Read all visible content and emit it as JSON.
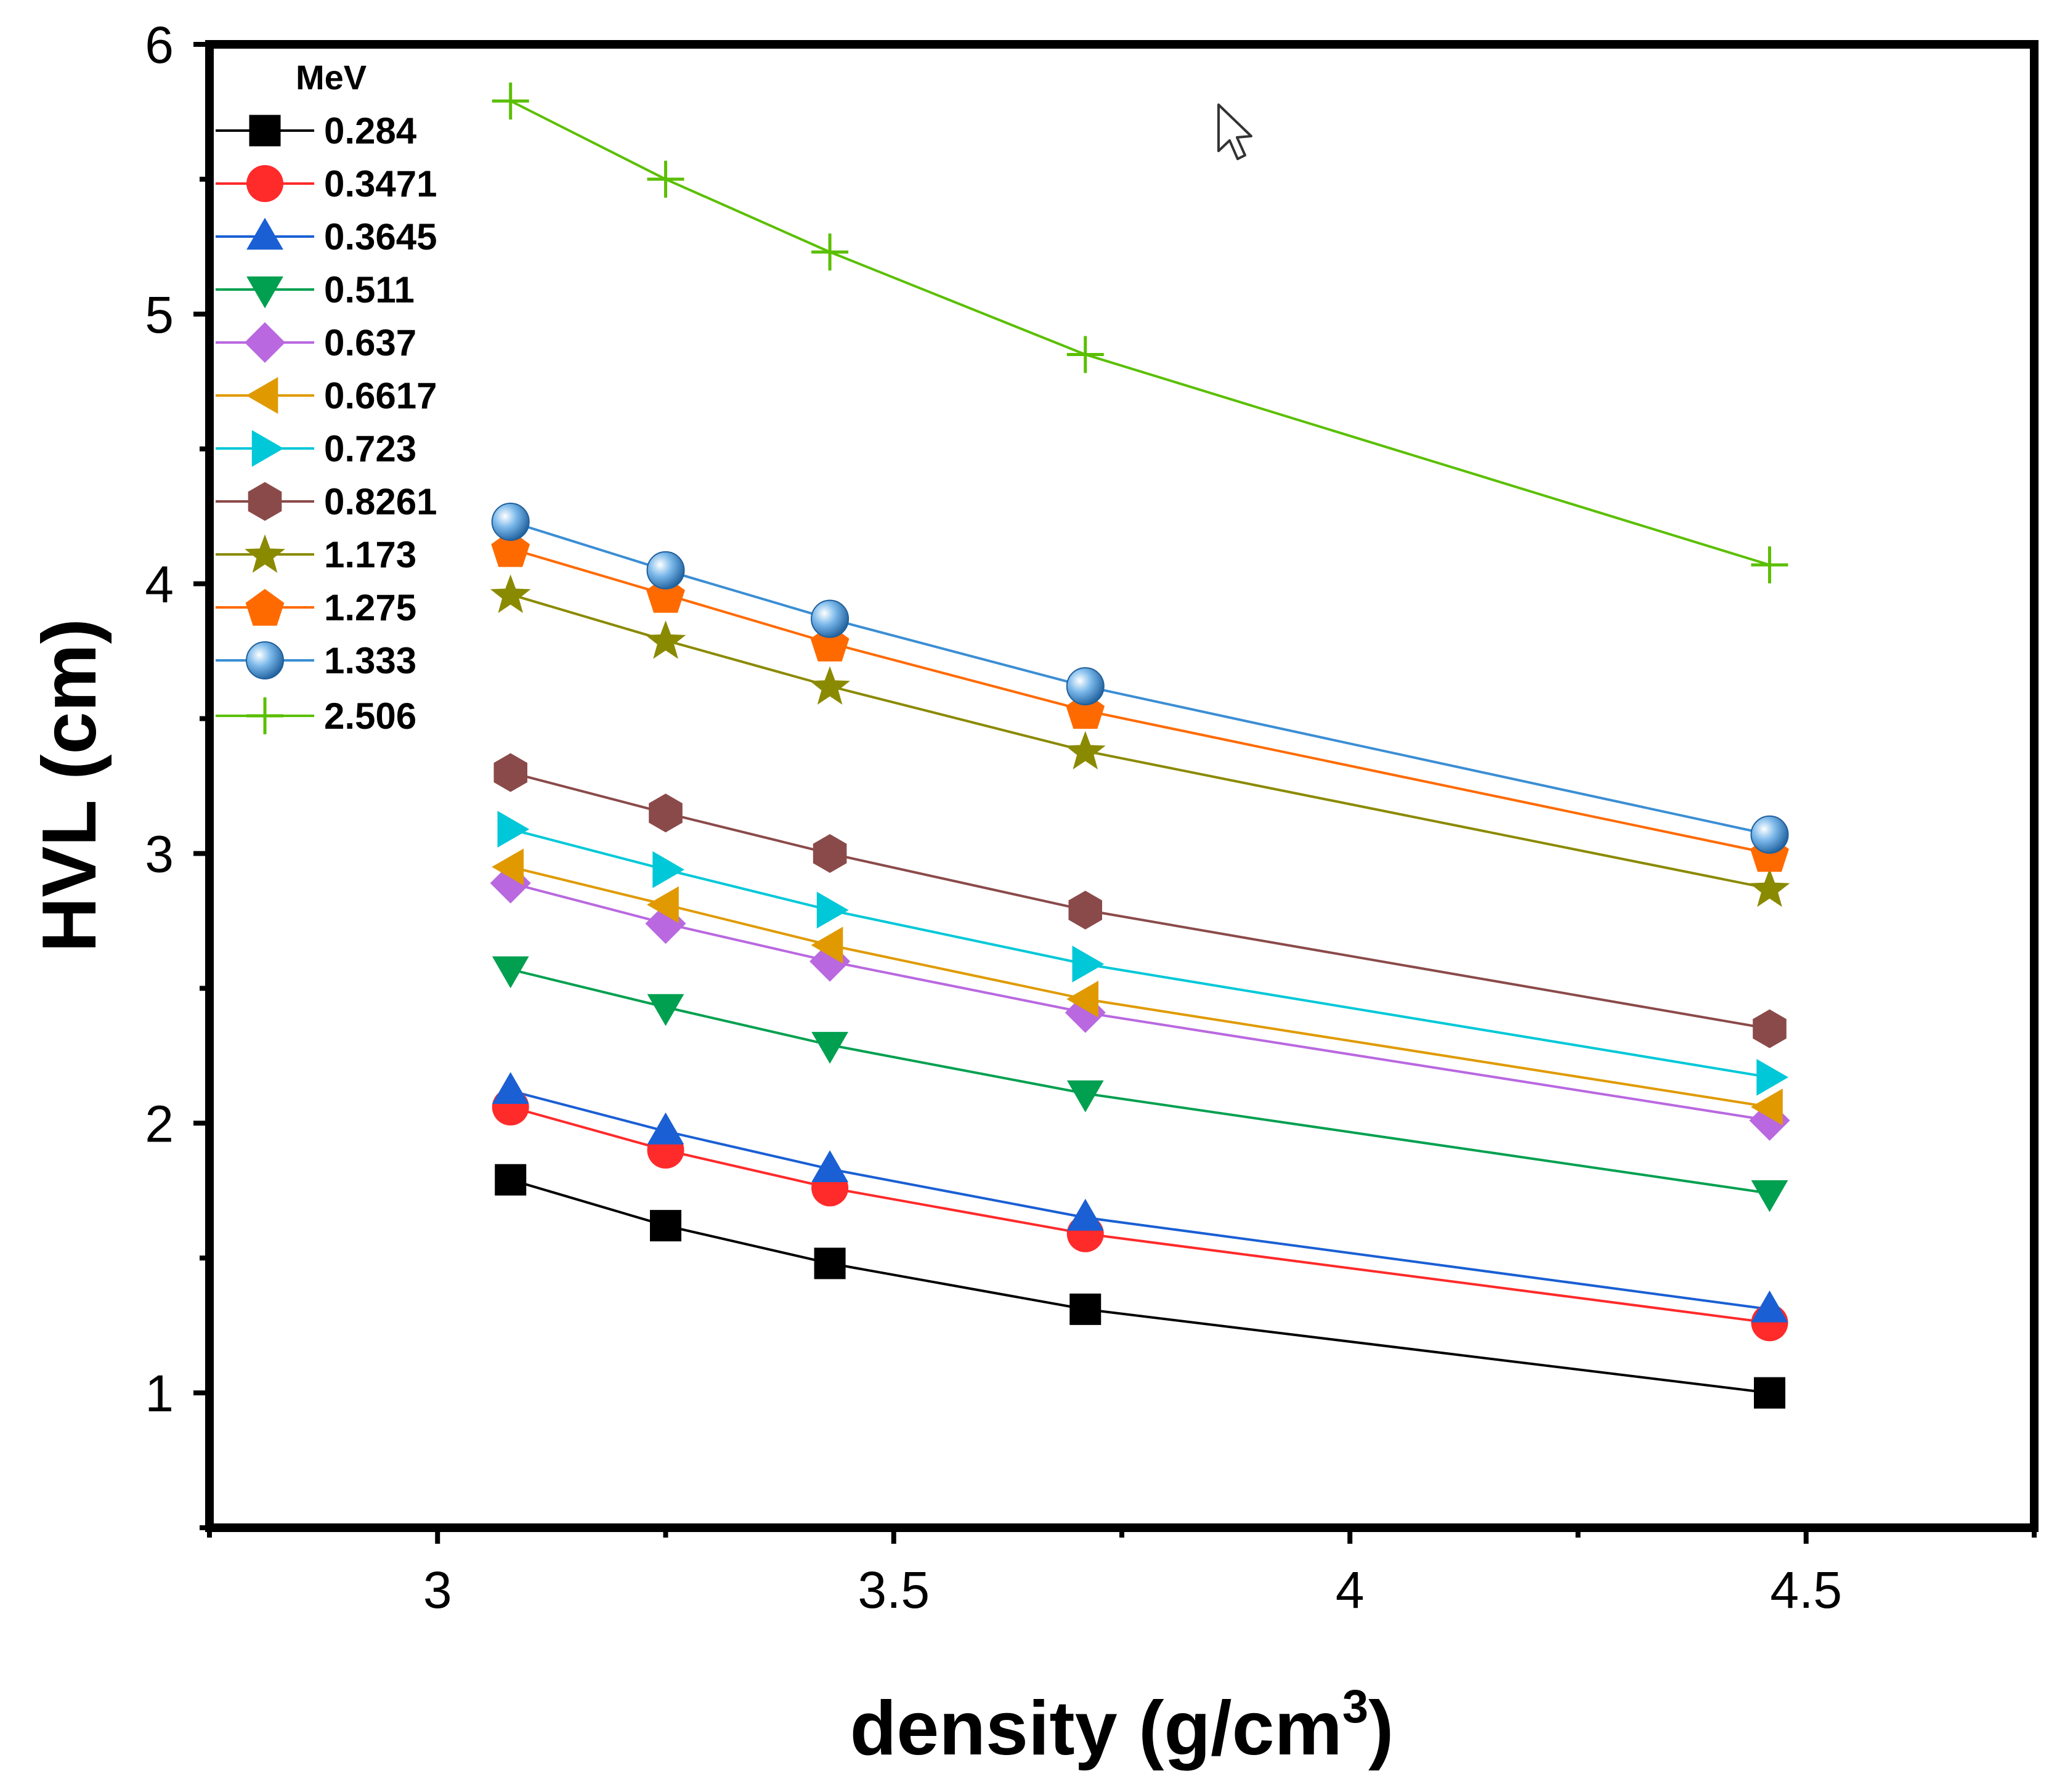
{
  "chart_data": {
    "type": "line",
    "title": "",
    "xlabel_main": "density (g/cm",
    "xlabel_sup": "3",
    "xlabel_end": ")",
    "ylabel": "HVL (cm)",
    "xlim": [
      2.75,
      4.75
    ],
    "ylim": [
      0.5,
      6
    ],
    "x_ticks": [
      3,
      3.5,
      4,
      4.5
    ],
    "x_tick_labels": [
      "3",
      "3.5",
      "4",
      "4.5"
    ],
    "y_ticks": [
      1,
      2,
      3,
      4,
      5,
      6
    ],
    "y_tick_labels": [
      "1",
      "2",
      "3",
      "4",
      "5",
      "6"
    ],
    "legend_title": "MeV",
    "legend_position": "top-left",
    "x": [
      3.08,
      3.25,
      3.43,
      3.71,
      4.46
    ],
    "series": [
      {
        "name": "0.284",
        "color": "#000000",
        "marker": "square",
        "values": [
          1.79,
          1.62,
          1.48,
          1.31,
          1.0
        ]
      },
      {
        "name": "0.3471",
        "color": "#ff2a2a",
        "marker": "circle",
        "values": [
          2.06,
          1.9,
          1.76,
          1.59,
          1.26
        ]
      },
      {
        "name": "0.3645",
        "color": "#1a5fd4",
        "marker": "triangle-up",
        "values": [
          2.12,
          1.97,
          1.83,
          1.65,
          1.31
        ]
      },
      {
        "name": "0.511",
        "color": "#00a050",
        "marker": "triangle-down",
        "values": [
          2.57,
          2.43,
          2.29,
          2.11,
          1.74
        ]
      },
      {
        "name": "0.637",
        "color": "#b968e0",
        "marker": "diamond",
        "values": [
          2.89,
          2.74,
          2.6,
          2.41,
          2.01
        ]
      },
      {
        "name": "0.6617",
        "color": "#e09a00",
        "marker": "triangle-left",
        "values": [
          2.95,
          2.81,
          2.66,
          2.46,
          2.06
        ]
      },
      {
        "name": "0.723",
        "color": "#00c8d8",
        "marker": "triangle-right",
        "values": [
          3.09,
          2.94,
          2.79,
          2.59,
          2.17
        ]
      },
      {
        "name": "0.8261",
        "color": "#8b4a4a",
        "marker": "hexagon",
        "values": [
          3.3,
          3.15,
          3.0,
          2.79,
          2.35
        ]
      },
      {
        "name": "1.173",
        "color": "#8a8a00",
        "marker": "star",
        "values": [
          3.96,
          3.79,
          3.62,
          3.38,
          2.87
        ]
      },
      {
        "name": "1.275",
        "color": "#ff6a00",
        "marker": "pentagon",
        "values": [
          4.13,
          3.96,
          3.78,
          3.53,
          3.0
        ]
      },
      {
        "name": "1.333",
        "color": "#3b8ed4",
        "marker": "sphere",
        "values": [
          4.23,
          4.05,
          3.87,
          3.62,
          3.07
        ]
      },
      {
        "name": "2.506",
        "color": "#5abf00",
        "marker": "plus",
        "values": [
          5.79,
          5.5,
          5.23,
          4.85,
          4.07
        ]
      }
    ]
  }
}
